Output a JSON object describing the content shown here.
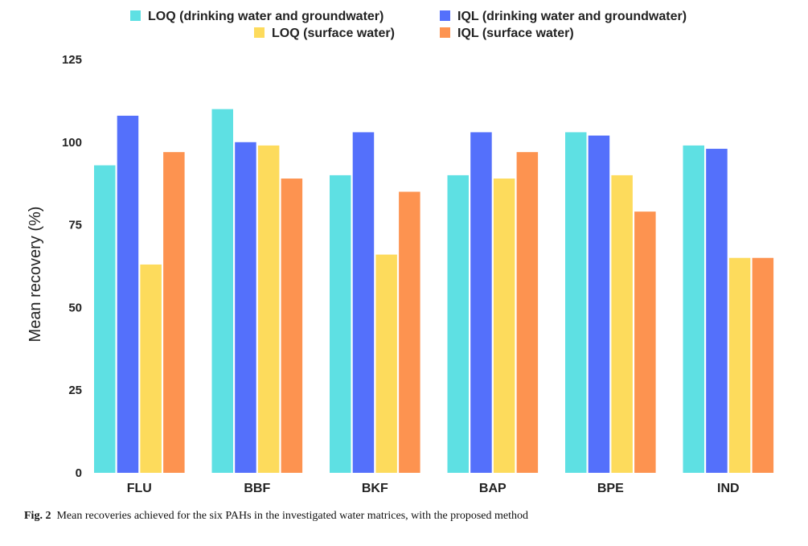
{
  "caption": {
    "label": "Fig. 2",
    "text": "Mean recoveries achieved for the six PAHs in the investigated water matrices, with the proposed method"
  },
  "chart_data": {
    "type": "bar",
    "title": "",
    "xlabel": "",
    "ylabel": "Mean recovery (%)",
    "ylim": [
      0,
      125
    ],
    "yticks": [
      0,
      25,
      50,
      75,
      100,
      125
    ],
    "grid": false,
    "legend_position": "top",
    "categories": [
      "FLU",
      "BBF",
      "BKF",
      "BAP",
      "BPE",
      "IND"
    ],
    "series": [
      {
        "name": "LOQ (drinking water and groundwater)",
        "color": "#5ee0e3",
        "values": [
          93,
          110,
          90,
          90,
          103,
          99
        ]
      },
      {
        "name": "IQL (drinking water and groundwater)",
        "color": "#5470fb",
        "values": [
          108,
          100,
          103,
          103,
          102,
          98
        ]
      },
      {
        "name": "LOQ (surface water)",
        "color": "#fddb5c",
        "values": [
          63,
          99,
          66,
          89,
          90,
          65
        ]
      },
      {
        "name": "IQL (surface water)",
        "color": "#fd9350",
        "values": [
          97,
          89,
          85,
          97,
          79,
          65
        ]
      }
    ]
  }
}
